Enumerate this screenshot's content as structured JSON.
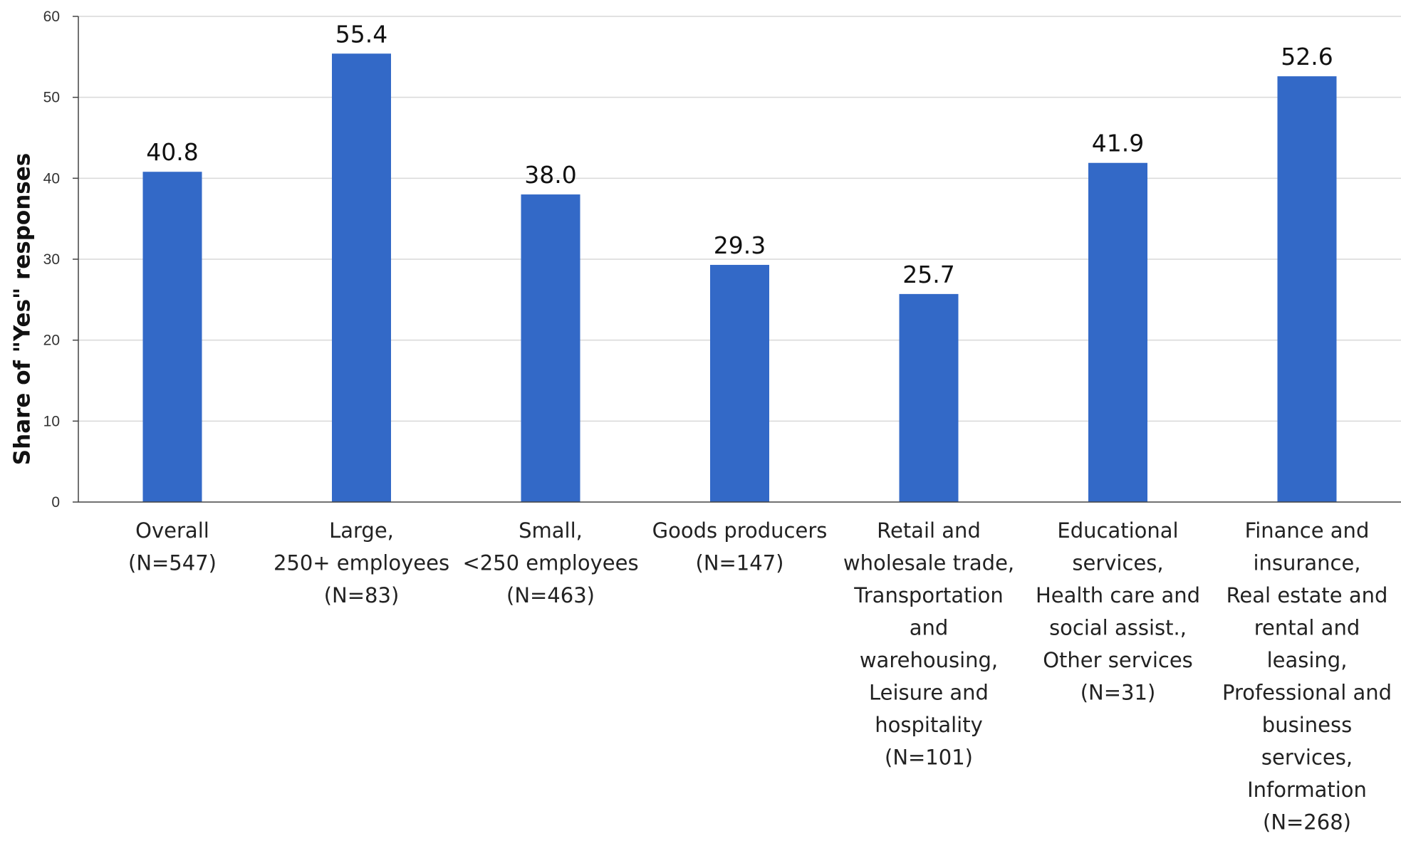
{
  "chart_data": {
    "type": "bar",
    "title": "",
    "xlabel": "",
    "ylabel": "Share of \"Yes\" responses",
    "ylim": [
      0,
      60
    ],
    "yticks": [
      0,
      10,
      20,
      30,
      40,
      50,
      60
    ],
    "grid": true,
    "legend": "none",
    "bar_color": "#3369c7",
    "categories": [
      [
        "Overall",
        "(N=547)"
      ],
      [
        "Large,",
        "250+ employees",
        "(N=83)"
      ],
      [
        "Small,",
        "<250 employees",
        "(N=463)"
      ],
      [
        "Goods producers",
        "(N=147)"
      ],
      [
        "Retail and",
        "wholesale trade,",
        "Transportation",
        "and",
        "warehousing,",
        "Leisure and",
        "hospitality",
        "(N=101)"
      ],
      [
        "Educational",
        "services,",
        "Health care and",
        "social assist.,",
        "Other services",
        "(N=31)"
      ],
      [
        "Finance and",
        "insurance,",
        "Real estate and",
        "rental and",
        "leasing,",
        "Professional and",
        "business",
        "services,",
        "Information",
        "(N=268)"
      ]
    ],
    "values": [
      40.8,
      55.4,
      38.0,
      29.3,
      25.7,
      41.9,
      52.6
    ],
    "value_labels": [
      "40.8",
      "55.4",
      "38.0",
      "29.3",
      "25.7",
      "41.9",
      "52.6"
    ]
  }
}
